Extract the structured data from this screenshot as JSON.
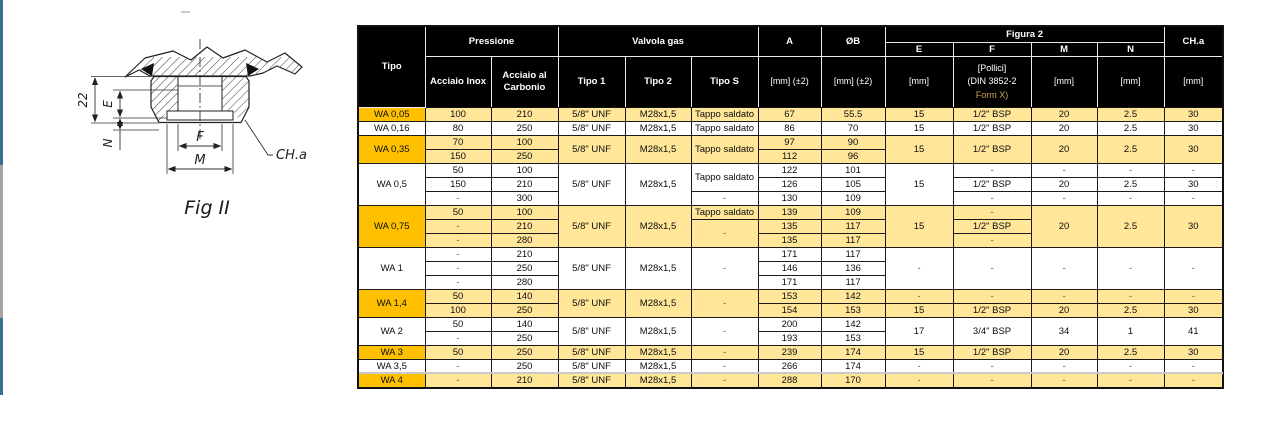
{
  "figure": {
    "caption": "Fig II",
    "labels": {
      "height": "22",
      "e": "E",
      "n": "N",
      "f": "F",
      "m": "M",
      "leader": "CH.a"
    }
  },
  "side_strip": {
    "colors": [
      "#38708F",
      "#A8A2A2",
      "#38708F"
    ]
  },
  "table": {
    "colors": {
      "highlight_tipo": "#FFC000",
      "highlight_row": "#FFE699",
      "header_bg": "#000000",
      "header_text": "#FFFFFF",
      "form_x_text": "#C9A257"
    },
    "header": {
      "tipo": "Tipo",
      "pressione": "Pressione",
      "pressione_sub": [
        "Acciaio Inox",
        "Acciaio al Carbonio"
      ],
      "valvola": "Valvola gas",
      "valvola_sub": [
        "Tipo 1",
        "Tipo 2",
        "Tipo S"
      ],
      "a": "A",
      "a_unit": "[mm] (±2)",
      "b": "ØB",
      "b_unit": "[mm] (±2)",
      "figura2": "Figura 2",
      "figura2_sub": [
        "E",
        "F",
        "M",
        "N"
      ],
      "e_unit": "[mm]",
      "f_unit_lines": [
        "[Pollici]",
        "(DIN 3852-2",
        "Form X)"
      ],
      "m_unit": "[mm]",
      "n_unit": "[mm]",
      "cha": "CH.a",
      "cha_unit": "[mm]"
    },
    "rows": [
      {
        "hl": true,
        "cells": [
          "WA 0,05",
          "100",
          "210",
          "5/8\" UNF",
          "M28x1,5",
          "Tappo saldato",
          "67",
          "55.5",
          "15",
          "1/2\" BSP",
          "20",
          "2.5",
          "30"
        ]
      },
      {
        "hl": false,
        "cells": [
          "WA 0,16",
          "80",
          "250",
          "5/8\" UNF",
          "M28x1,5",
          "Tappo saldato",
          "86",
          "70",
          "15",
          "1/2\" BSP",
          "20",
          "2.5",
          "30"
        ]
      },
      {
        "hl": true,
        "cells": [
          {
            "v": "WA 0,35",
            "rs": 2
          },
          "70",
          "100",
          {
            "v": "5/8\" UNF",
            "rs": 2
          },
          {
            "v": "M28x1,5",
            "rs": 2
          },
          {
            "v": "Tappo saldato",
            "rs": 2
          },
          "97",
          "90",
          {
            "v": "15",
            "rs": 2
          },
          {
            "v": "1/2\" BSP",
            "rs": 2
          },
          {
            "v": "20",
            "rs": 2
          },
          {
            "v": "2.5",
            "rs": 2
          },
          {
            "v": "30",
            "rs": 2
          }
        ]
      },
      {
        "hl": true,
        "cells": [
          null,
          "150",
          "250",
          null,
          null,
          null,
          "112",
          "96",
          null,
          null,
          null,
          null,
          null
        ]
      },
      {
        "hl": false,
        "cells": [
          {
            "v": "WA 0,5",
            "rs": 3
          },
          "50",
          "100",
          {
            "v": "5/8\" UNF",
            "rs": 3
          },
          {
            "v": "M28x1,5",
            "rs": 3
          },
          {
            "v": "Tappo saldato",
            "rs": 2
          },
          "122",
          "101",
          {
            "v": "15",
            "rs": 3
          },
          "-",
          "-",
          "-",
          "-"
        ]
      },
      {
        "hl": false,
        "cells": [
          null,
          "150",
          "210",
          null,
          null,
          null,
          "126",
          "105",
          null,
          "1/2\" BSP",
          "20",
          "2.5",
          "30"
        ]
      },
      {
        "hl": false,
        "cells": [
          null,
          "-",
          "300",
          null,
          null,
          "-",
          "130",
          "109",
          null,
          "-",
          "-",
          "-",
          "-"
        ]
      },
      {
        "hl": true,
        "cells": [
          {
            "v": "WA 0,75",
            "rs": 3
          },
          "50",
          "100",
          {
            "v": "5/8\" UNF",
            "rs": 3
          },
          {
            "v": "M28x1,5",
            "rs": 3
          },
          "Tappo saldato",
          "139",
          "109",
          {
            "v": "15",
            "rs": 3
          },
          "-",
          {
            "v": "20",
            "rs": 3
          },
          {
            "v": "2.5",
            "rs": 3
          },
          {
            "v": "30",
            "rs": 3
          }
        ]
      },
      {
        "hl": true,
        "cells": [
          null,
          "-",
          "210",
          null,
          null,
          {
            "v": "-",
            "rs": 2
          },
          "135",
          "117",
          null,
          "1/2\" BSP",
          null,
          null,
          null
        ]
      },
      {
        "hl": true,
        "cells": [
          null,
          "-",
          "280",
          null,
          null,
          null,
          "135",
          "117",
          null,
          "-",
          null,
          null,
          null
        ]
      },
      {
        "hl": false,
        "cells": [
          {
            "v": "WA 1",
            "rs": 3
          },
          "-",
          "210",
          {
            "v": "5/8\" UNF",
            "rs": 3
          },
          {
            "v": "M28x1,5",
            "rs": 3
          },
          {
            "v": "-",
            "rs": 3
          },
          "171",
          "117",
          {
            "v": "-",
            "rs": 3
          },
          {
            "v": "-",
            "rs": 3
          },
          {
            "v": "-",
            "rs": 3
          },
          {
            "v": "-",
            "rs": 3
          },
          {
            "v": "-",
            "rs": 3
          }
        ]
      },
      {
        "hl": false,
        "cells": [
          null,
          "-",
          "250",
          null,
          null,
          null,
          "146",
          "136",
          null,
          null,
          null,
          null,
          null
        ]
      },
      {
        "hl": false,
        "cells": [
          null,
          "-",
          "280",
          null,
          null,
          null,
          "171",
          "117",
          null,
          null,
          null,
          null,
          null
        ]
      },
      {
        "hl": true,
        "cells": [
          {
            "v": "WA 1,4",
            "rs": 2
          },
          "50",
          "140",
          {
            "v": "5/8\" UNF",
            "rs": 2
          },
          {
            "v": "M28x1,5",
            "rs": 2
          },
          {
            "v": "-",
            "rs": 2
          },
          "153",
          "142",
          "-",
          "-",
          "-",
          "-",
          "-"
        ]
      },
      {
        "hl": true,
        "cells": [
          null,
          "100",
          "250",
          null,
          null,
          null,
          "154",
          "153",
          "15",
          "1/2\" BSP",
          "20",
          "2.5",
          "30"
        ]
      },
      {
        "hl": false,
        "cells": [
          {
            "v": "WA 2",
            "rs": 2
          },
          "50",
          "140",
          {
            "v": "5/8\" UNF",
            "rs": 2
          },
          {
            "v": "M28x1,5",
            "rs": 2
          },
          {
            "v": "-",
            "rs": 2
          },
          "200",
          "142",
          {
            "v": "17",
            "rs": 2
          },
          {
            "v": "3/4\" BSP",
            "rs": 2
          },
          {
            "v": "34",
            "rs": 2
          },
          {
            "v": "1",
            "rs": 2
          },
          {
            "v": "41",
            "rs": 2
          }
        ]
      },
      {
        "hl": false,
        "cells": [
          null,
          "-",
          "250",
          null,
          null,
          null,
          "193",
          "153",
          null,
          null,
          null,
          null,
          null
        ]
      },
      {
        "hl": true,
        "cells": [
          "WA 3",
          "50",
          "250",
          "5/8\" UNF",
          "M28x1,5",
          "-",
          "239",
          "174",
          "15",
          "1/2\" BSP",
          "20",
          "2.5",
          "30"
        ]
      },
      {
        "hl": false,
        "cells": [
          "WA 3,5",
          "-",
          "250",
          "5/8\" UNF",
          "M28x1,5",
          "-",
          "266",
          "174",
          "-",
          "-",
          "-",
          "-",
          "-"
        ]
      },
      {
        "hl": true,
        "cells": [
          "WA 4",
          "-",
          "210",
          "5/8\" UNF",
          "M28x1,5",
          "-",
          "288",
          "170",
          "-",
          "-",
          "-",
          "-",
          "-"
        ]
      }
    ]
  }
}
